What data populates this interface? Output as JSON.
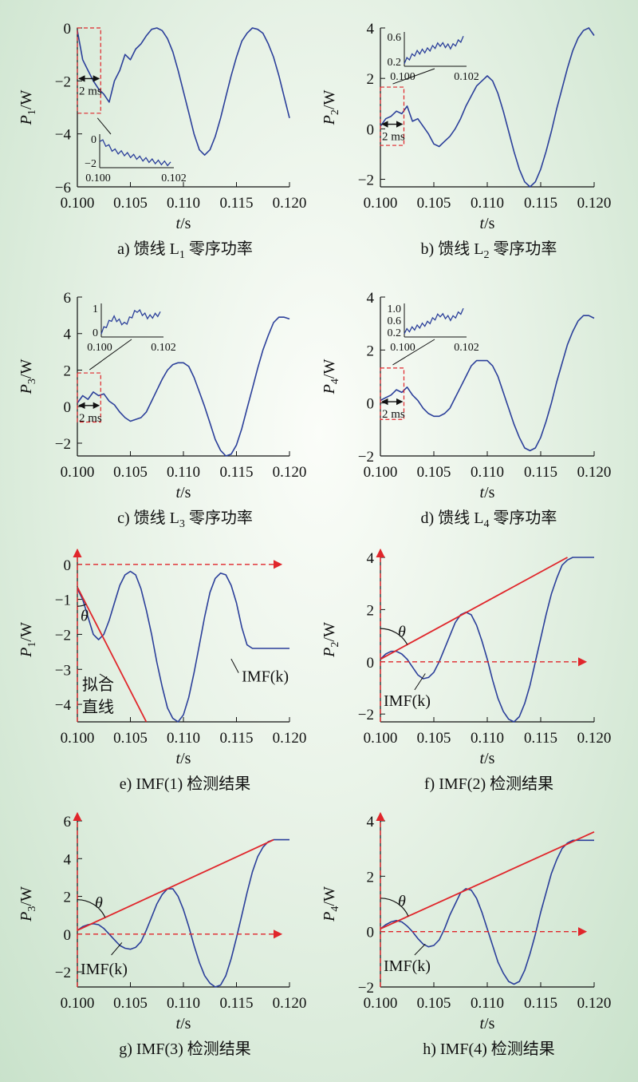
{
  "panels": [
    {
      "id": "a",
      "caption": "a) 馈线 L",
      "caption_sub": "1",
      "caption_tail": " 零序功率",
      "ylabel_main": "P",
      "ylabel_sub": "1",
      "ylabel_unit": "/W",
      "xlabel_main": "t",
      "xlabel_unit": "/s",
      "xticks": [
        "0.100",
        "0.105",
        "0.110",
        "0.115",
        "0.120"
      ],
      "yticks": [
        "0",
        "−2",
        "−4",
        "−6"
      ],
      "scale_label": "2 ms",
      "inset": {
        "xticks": [
          "0.100",
          "0.102"
        ],
        "yticks": [
          "0",
          "−2"
        ]
      }
    },
    {
      "id": "b",
      "caption": "b) 馈线 L",
      "caption_sub": "2",
      "caption_tail": " 零序功率",
      "ylabel_main": "P",
      "ylabel_sub": "2",
      "ylabel_unit": "/W",
      "xlabel_main": "t",
      "xlabel_unit": "/s",
      "xticks": [
        "0.100",
        "0.105",
        "0.110",
        "0.115",
        "0.120"
      ],
      "yticks": [
        "4",
        "2",
        "0",
        "−2"
      ],
      "scale_label": "2 ms",
      "inset": {
        "xticks": [
          "0.100",
          "0.102"
        ],
        "yticks": [
          "0.6",
          "0.2"
        ]
      }
    },
    {
      "id": "c",
      "caption": "c) 馈线 L",
      "caption_sub": "3",
      "caption_tail": " 零序功率",
      "ylabel_main": "P",
      "ylabel_sub": "3",
      "ylabel_unit": "/W",
      "xlabel_main": "t",
      "xlabel_unit": "/s",
      "xticks": [
        "0.100",
        "0.105",
        "0.110",
        "0.115",
        "0.120"
      ],
      "yticks": [
        "6",
        "4",
        "2",
        "0",
        "−2"
      ],
      "scale_label": "2 ms",
      "inset": {
        "xticks": [
          "0.100",
          "0.102"
        ],
        "yticks": [
          "1",
          "0"
        ]
      }
    },
    {
      "id": "d",
      "caption": "d) 馈线 L",
      "caption_sub": "4",
      "caption_tail": " 零序功率",
      "ylabel_main": "P",
      "ylabel_sub": "4",
      "ylabel_unit": "/W",
      "xlabel_main": "t",
      "xlabel_unit": "/s",
      "xticks": [
        "0.100",
        "0.105",
        "0.110",
        "0.115",
        "0.120"
      ],
      "yticks": [
        "4",
        "2",
        "0",
        "−2"
      ],
      "scale_label": "2 ms",
      "inset": {
        "xticks": [
          "0.100",
          "0.102"
        ],
        "yticks": [
          "1.0",
          "0.6",
          "0.2"
        ]
      }
    },
    {
      "id": "e",
      "caption": "e) IMF(1) 检测结果",
      "caption_sub": "",
      "caption_tail": "",
      "ylabel_main": "P",
      "ylabel_sub": "1",
      "ylabel_unit": "/W",
      "xlabel_main": "t",
      "xlabel_unit": "/s",
      "xticks": [
        "0.100",
        "0.105",
        "0.110",
        "0.115",
        "0.120"
      ],
      "yticks": [
        "0",
        "−1",
        "−2",
        "−3",
        "−4"
      ],
      "theta": "θ",
      "imf_label": "IMF(k)",
      "fit_label_1": "拟合",
      "fit_label_2": "直线"
    },
    {
      "id": "f",
      "caption": "f) IMF(2) 检测结果",
      "caption_sub": "",
      "caption_tail": "",
      "ylabel_main": "P",
      "ylabel_sub": "2",
      "ylabel_unit": "/W",
      "xlabel_main": "t",
      "xlabel_unit": "/s",
      "xticks": [
        "0.100",
        "0.105",
        "0.110",
        "0.115",
        "0.120"
      ],
      "yticks": [
        "4",
        "2",
        "0",
        "−2"
      ],
      "theta": "θ",
      "imf_label": "IMF(k)"
    },
    {
      "id": "g",
      "caption": "g) IMF(3) 检测结果",
      "caption_sub": "",
      "caption_tail": "",
      "ylabel_main": "P",
      "ylabel_sub": "3",
      "ylabel_unit": "/W",
      "xlabel_main": "t",
      "xlabel_unit": "/s",
      "xticks": [
        "0.100",
        "0.105",
        "0.110",
        "0.115",
        "0.120"
      ],
      "yticks": [
        "6",
        "4",
        "2",
        "0",
        "−2"
      ],
      "theta": "θ",
      "imf_label": "IMF(k)"
    },
    {
      "id": "h",
      "caption": "h) IMF(4) 检测结果",
      "caption_sub": "",
      "caption_tail": "",
      "ylabel_main": "P",
      "ylabel_sub": "4",
      "ylabel_unit": "/W",
      "xlabel_main": "t",
      "xlabel_unit": "/s",
      "xticks": [
        "0.100",
        "0.105",
        "0.110",
        "0.115",
        "0.120"
      ],
      "yticks": [
        "4",
        "2",
        "0",
        "−2"
      ],
      "theta": "θ",
      "imf_label": "IMF(k)"
    }
  ],
  "colors": {
    "curve": "#2b3f9a",
    "fit": "#e0262b",
    "box": "#e0262b",
    "axis": "#111111"
  },
  "chart_data": [
    {
      "type": "line",
      "panel": "a",
      "xlim": [
        0.1,
        0.12
      ],
      "ylim": [
        -6,
        0
      ],
      "x": [
        0.1,
        0.1005,
        0.101,
        0.1015,
        0.102,
        0.1025,
        0.103,
        0.1035,
        0.104,
        0.1045,
        0.105,
        0.1055,
        0.106,
        0.1065,
        0.107,
        0.1075,
        0.108,
        0.1085,
        0.109,
        0.1095,
        0.11,
        0.1105,
        0.111,
        0.1115,
        0.112,
        0.1125,
        0.113,
        0.1135,
        0.114,
        0.1145,
        0.115,
        0.1155,
        0.116,
        0.1165,
        0.117,
        0.1175,
        0.118,
        0.1185,
        0.119,
        0.1195,
        0.12
      ],
      "y": [
        -0.1,
        -1.2,
        -1.6,
        -2.0,
        -2.3,
        -2.5,
        -2.8,
        -2.0,
        -1.6,
        -1.0,
        -1.2,
        -0.8,
        -0.6,
        -0.3,
        -0.05,
        0.0,
        -0.1,
        -0.4,
        -0.9,
        -1.6,
        -2.4,
        -3.2,
        -4.0,
        -4.6,
        -4.8,
        -4.6,
        -4.1,
        -3.4,
        -2.6,
        -1.8,
        -1.1,
        -0.5,
        -0.2,
        0.0,
        -0.05,
        -0.2,
        -0.6,
        -1.1,
        -1.8,
        -2.6,
        -3.4
      ]
    },
    {
      "type": "line",
      "panel": "b",
      "xlim": [
        0.1,
        0.12
      ],
      "ylim": [
        -2.3,
        4
      ],
      "x": [
        0.1,
        0.1005,
        0.101,
        0.1015,
        0.102,
        0.1025,
        0.103,
        0.1035,
        0.104,
        0.1045,
        0.105,
        0.1055,
        0.106,
        0.1065,
        0.107,
        0.1075,
        0.108,
        0.1085,
        0.109,
        0.1095,
        0.11,
        0.1105,
        0.111,
        0.1115,
        0.112,
        0.1125,
        0.113,
        0.1135,
        0.114,
        0.1145,
        0.115,
        0.1155,
        0.116,
        0.1165,
        0.117,
        0.1175,
        0.118,
        0.1185,
        0.119,
        0.1195,
        0.12
      ],
      "y": [
        0.1,
        0.4,
        0.5,
        0.7,
        0.6,
        0.9,
        0.3,
        0.4,
        0.1,
        -0.2,
        -0.6,
        -0.7,
        -0.5,
        -0.3,
        0.0,
        0.4,
        0.9,
        1.3,
        1.7,
        1.9,
        2.1,
        1.9,
        1.4,
        0.7,
        -0.1,
        -0.9,
        -1.6,
        -2.1,
        -2.3,
        -2.1,
        -1.6,
        -0.9,
        -0.1,
        0.8,
        1.6,
        2.4,
        3.1,
        3.6,
        3.9,
        4.0,
        3.7
      ]
    },
    {
      "type": "line",
      "panel": "c",
      "xlim": [
        0.1,
        0.12
      ],
      "ylim": [
        -2.7,
        6
      ],
      "x": [
        0.1,
        0.1005,
        0.101,
        0.1015,
        0.102,
        0.1025,
        0.103,
        0.1035,
        0.104,
        0.1045,
        0.105,
        0.1055,
        0.106,
        0.1065,
        0.107,
        0.1075,
        0.108,
        0.1085,
        0.109,
        0.1095,
        0.11,
        0.1105,
        0.111,
        0.1115,
        0.112,
        0.1125,
        0.113,
        0.1135,
        0.114,
        0.1145,
        0.115,
        0.1155,
        0.116,
        0.1165,
        0.117,
        0.1175,
        0.118,
        0.1185,
        0.119,
        0.1195,
        0.12
      ],
      "y": [
        0.2,
        0.6,
        0.4,
        0.8,
        0.6,
        0.7,
        0.3,
        0.1,
        -0.3,
        -0.6,
        -0.8,
        -0.7,
        -0.6,
        -0.3,
        0.3,
        0.9,
        1.5,
        2.0,
        2.3,
        2.4,
        2.4,
        2.2,
        1.6,
        0.8,
        0.0,
        -0.9,
        -1.8,
        -2.4,
        -2.7,
        -2.6,
        -2.1,
        -1.2,
        -0.1,
        1.0,
        2.1,
        3.1,
        3.9,
        4.6,
        4.9,
        4.9,
        4.8
      ]
    },
    {
      "type": "line",
      "panel": "d",
      "xlim": [
        0.1,
        0.12
      ],
      "ylim": [
        -2,
        4
      ],
      "x": [
        0.1,
        0.1005,
        0.101,
        0.1015,
        0.102,
        0.1025,
        0.103,
        0.1035,
        0.104,
        0.1045,
        0.105,
        0.1055,
        0.106,
        0.1065,
        0.107,
        0.1075,
        0.108,
        0.1085,
        0.109,
        0.1095,
        0.11,
        0.1105,
        0.111,
        0.1115,
        0.112,
        0.1125,
        0.113,
        0.1135,
        0.114,
        0.1145,
        0.115,
        0.1155,
        0.116,
        0.1165,
        0.117,
        0.1175,
        0.118,
        0.1185,
        0.119,
        0.1195,
        0.12
      ],
      "y": [
        0.1,
        0.2,
        0.3,
        0.5,
        0.4,
        0.6,
        0.3,
        0.1,
        -0.2,
        -0.4,
        -0.5,
        -0.5,
        -0.4,
        -0.2,
        0.2,
        0.6,
        1.0,
        1.4,
        1.6,
        1.6,
        1.6,
        1.4,
        1.0,
        0.4,
        -0.2,
        -0.8,
        -1.3,
        -1.7,
        -1.8,
        -1.7,
        -1.3,
        -0.7,
        0.0,
        0.8,
        1.5,
        2.2,
        2.7,
        3.1,
        3.3,
        3.3,
        3.2
      ]
    },
    {
      "type": "line",
      "panel": "e",
      "xlim": [
        0.1,
        0.12
      ],
      "ylim": [
        -4.5,
        0.2
      ],
      "x": [
        0.1,
        0.1005,
        0.101,
        0.1015,
        0.102,
        0.1025,
        0.103,
        0.1035,
        0.104,
        0.1045,
        0.105,
        0.1055,
        0.106,
        0.1065,
        0.107,
        0.1075,
        0.108,
        0.1085,
        0.109,
        0.1095,
        0.11,
        0.1105,
        0.111,
        0.1115,
        0.112,
        0.1125,
        0.113,
        0.1135,
        0.114,
        0.1145,
        0.115,
        0.1155,
        0.116,
        0.1165,
        0.117,
        0.1175,
        0.118,
        0.1185,
        0.119,
        0.1195,
        0.12
      ],
      "y": [
        -0.7,
        -1.0,
        -1.5,
        -2.0,
        -2.15,
        -2.0,
        -1.6,
        -1.1,
        -0.6,
        -0.3,
        -0.2,
        -0.3,
        -0.7,
        -1.3,
        -2.0,
        -2.8,
        -3.5,
        -4.1,
        -4.4,
        -4.5,
        -4.3,
        -3.8,
        -3.1,
        -2.3,
        -1.5,
        -0.8,
        -0.4,
        -0.25,
        -0.3,
        -0.6,
        -1.1,
        -1.8,
        -2.3,
        -2.4,
        -2.4,
        -2.4,
        -2.4,
        -2.4,
        -2.4,
        -2.4,
        -2.4
      ],
      "fit_line": {
        "x": [
          0.1,
          0.1065
        ],
        "y": [
          -0.65,
          -4.5
        ]
      }
    },
    {
      "type": "line",
      "panel": "f",
      "xlim": [
        0.1,
        0.12
      ],
      "ylim": [
        -2.3,
        4
      ],
      "x": [
        0.1,
        0.1005,
        0.101,
        0.1015,
        0.102,
        0.1025,
        0.103,
        0.1035,
        0.104,
        0.1045,
        0.105,
        0.1055,
        0.106,
        0.1065,
        0.107,
        0.1075,
        0.108,
        0.1085,
        0.109,
        0.1095,
        0.11,
        0.1105,
        0.111,
        0.1115,
        0.112,
        0.1125,
        0.113,
        0.1135,
        0.114,
        0.1145,
        0.115,
        0.1155,
        0.116,
        0.1165,
        0.117,
        0.1175,
        0.118,
        0.1185,
        0.119,
        0.1195,
        0.12
      ],
      "y": [
        0.1,
        0.3,
        0.4,
        0.4,
        0.3,
        0.1,
        -0.2,
        -0.5,
        -0.65,
        -0.6,
        -0.4,
        0.0,
        0.5,
        1.0,
        1.5,
        1.8,
        1.9,
        1.8,
        1.4,
        0.8,
        0.1,
        -0.7,
        -1.4,
        -1.9,
        -2.2,
        -2.3,
        -2.1,
        -1.6,
        -0.9,
        0.0,
        0.9,
        1.8,
        2.6,
        3.2,
        3.7,
        3.9,
        4.0,
        4.0,
        4.0,
        4.0,
        4.0
      ],
      "fit_line": {
        "x": [
          0.1,
          0.1175
        ],
        "y": [
          0.1,
          4.0
        ]
      }
    },
    {
      "type": "line",
      "panel": "g",
      "xlim": [
        0.1,
        0.12
      ],
      "ylim": [
        -2.8,
        6
      ],
      "x": [
        0.1,
        0.1005,
        0.101,
        0.1015,
        0.102,
        0.1025,
        0.103,
        0.1035,
        0.104,
        0.1045,
        0.105,
        0.1055,
        0.106,
        0.1065,
        0.107,
        0.1075,
        0.108,
        0.1085,
        0.109,
        0.1095,
        0.11,
        0.1105,
        0.111,
        0.1115,
        0.112,
        0.1125,
        0.113,
        0.1135,
        0.114,
        0.1145,
        0.115,
        0.1155,
        0.116,
        0.1165,
        0.117,
        0.1175,
        0.118,
        0.1185,
        0.119,
        0.1195,
        0.12
      ],
      "y": [
        0.2,
        0.4,
        0.5,
        0.55,
        0.5,
        0.3,
        0.0,
        -0.3,
        -0.6,
        -0.75,
        -0.8,
        -0.7,
        -0.4,
        0.2,
        0.9,
        1.6,
        2.1,
        2.4,
        2.4,
        2.0,
        1.3,
        0.4,
        -0.6,
        -1.5,
        -2.2,
        -2.6,
        -2.8,
        -2.7,
        -2.2,
        -1.3,
        -0.2,
        1.0,
        2.2,
        3.3,
        4.1,
        4.6,
        4.9,
        5.0,
        5.0,
        5.0,
        5.0
      ],
      "fit_line": {
        "x": [
          0.1,
          0.1185
        ],
        "y": [
          0.2,
          5.0
        ]
      }
    },
    {
      "type": "line",
      "panel": "h",
      "xlim": [
        0.1,
        0.12
      ],
      "ylim": [
        -2,
        4
      ],
      "x": [
        0.1,
        0.1005,
        0.101,
        0.1015,
        0.102,
        0.1025,
        0.103,
        0.1035,
        0.104,
        0.1045,
        0.105,
        0.1055,
        0.106,
        0.1065,
        0.107,
        0.1075,
        0.108,
        0.1085,
        0.109,
        0.1095,
        0.11,
        0.1105,
        0.111,
        0.1115,
        0.112,
        0.1125,
        0.113,
        0.1135,
        0.114,
        0.1145,
        0.115,
        0.1155,
        0.116,
        0.1165,
        0.117,
        0.1175,
        0.118,
        0.1185,
        0.119,
        0.1195,
        0.12
      ],
      "y": [
        0.1,
        0.25,
        0.35,
        0.4,
        0.35,
        0.2,
        0.0,
        -0.25,
        -0.45,
        -0.55,
        -0.5,
        -0.3,
        0.1,
        0.6,
        1.0,
        1.4,
        1.55,
        1.5,
        1.2,
        0.7,
        0.1,
        -0.5,
        -1.1,
        -1.5,
        -1.8,
        -1.9,
        -1.8,
        -1.4,
        -0.8,
        -0.1,
        0.7,
        1.4,
        2.1,
        2.6,
        3.0,
        3.2,
        3.3,
        3.3,
        3.3,
        3.3,
        3.3
      ],
      "fit_line": {
        "x": [
          0.1,
          0.12
        ],
        "y": [
          0.1,
          3.6
        ]
      }
    }
  ]
}
